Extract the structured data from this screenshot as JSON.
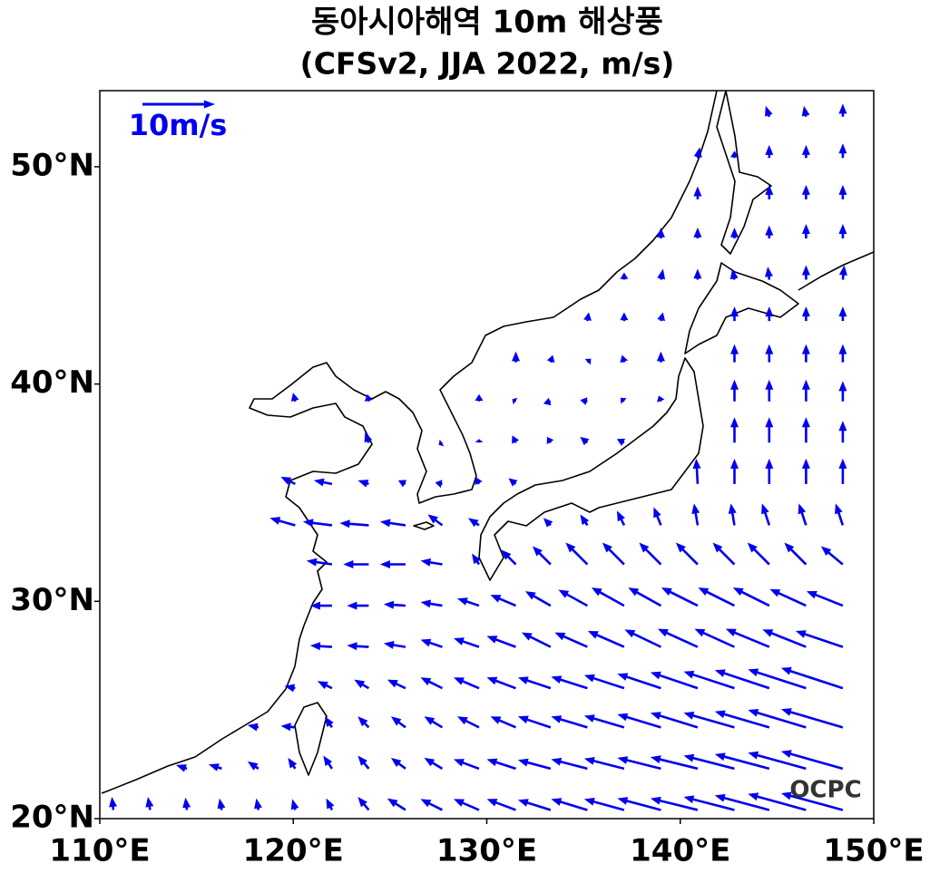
{
  "chart_data": {
    "type": "quiver",
    "title": "동아시아해역 10m 해상풍",
    "subtitle": "(CFSv2, JJA 2022, m/s)",
    "logo": "OCPC",
    "color": "#0000ee",
    "reference": {
      "value": 10,
      "label": "10m/s"
    },
    "xlim": [
      110,
      150
    ],
    "ylim": [
      20,
      53.5
    ],
    "xticks": [
      {
        "value": 110,
        "label": "110°E"
      },
      {
        "value": 120,
        "label": "120°E"
      },
      {
        "value": 130,
        "label": "130°E"
      },
      {
        "value": 140,
        "label": "140°E"
      },
      {
        "value": 150,
        "label": "150°E"
      }
    ],
    "yticks": [
      {
        "value": 20,
        "label": "20°N"
      },
      {
        "value": 30,
        "label": "30°N"
      },
      {
        "value": 40,
        "label": "40°N"
      },
      {
        "value": 50,
        "label": "50°N"
      }
    ],
    "lons": [
      110.7,
      112.6,
      114.5,
      116.3,
      118.2,
      120.1,
      122.0,
      123.9,
      125.8,
      127.7,
      129.6,
      131.5,
      133.3,
      135.2,
      137.1,
      139.0,
      140.9,
      142.8,
      144.6,
      146.5,
      148.4
    ],
    "lats": [
      20.4,
      22.3,
      24.2,
      26.0,
      27.9,
      29.8,
      31.7,
      33.5,
      35.4,
      37.3,
      39.2,
      41.0,
      42.9,
      44.8,
      46.7,
      48.5,
      50.4,
      52.3
    ],
    "u": [
      [
        -0.2,
        -0.3,
        -0.2,
        -0.3,
        -0.3,
        -0.4,
        -0.8,
        -1.5,
        -2.5,
        -3,
        -3.5,
        -4,
        -4.5,
        -5,
        -5.5,
        -6,
        -6.5,
        -7,
        -7.5,
        -8,
        -8.5
      ],
      [
        null,
        null,
        -1.5,
        -1.8,
        -1.5,
        -1,
        -1.2,
        -1.5,
        -2,
        -2.5,
        -3.5,
        -4,
        -4.5,
        -5,
        -5.5,
        -6,
        -6.5,
        -7,
        -7.5,
        -8,
        -8.5
      ],
      [
        null,
        null,
        null,
        null,
        -1.5,
        -2,
        -1,
        -1.5,
        -2,
        -2.5,
        -3,
        -3.5,
        -4.5,
        -5,
        -5.5,
        -6,
        -6.5,
        -7,
        -7.5,
        -8,
        -8.5
      ],
      [
        null,
        null,
        null,
        null,
        null,
        -1.5,
        -2,
        -2,
        -2.5,
        -3,
        -3.5,
        -4,
        -4.5,
        -5,
        -5.5,
        -6,
        -6.5,
        -7,
        -7.5,
        -8,
        -8.5
      ],
      [
        null,
        null,
        null,
        null,
        null,
        null,
        -3,
        -3,
        -3,
        -3,
        -3.5,
        -4,
        -4,
        -4.5,
        -5,
        -5,
        -5.5,
        -5.5,
        -6,
        -6,
        -6.5
      ],
      [
        null,
        null,
        null,
        null,
        null,
        null,
        -3,
        -3,
        -3,
        -3,
        -3,
        -3.5,
        -3.5,
        -4,
        -4.5,
        -4.5,
        -5,
        -5,
        -5,
        -5,
        -5
      ],
      [
        null,
        null,
        null,
        null,
        null,
        null,
        -3.5,
        -3.5,
        -3.5,
        -3,
        -1,
        -2,
        -2.5,
        -3,
        -3,
        -3,
        -3,
        -3,
        -3,
        -3,
        -3
      ],
      [
        null,
        null,
        null,
        null,
        null,
        -3.5,
        -4,
        -4,
        -3.5,
        -2,
        -1.5,
        null,
        -1,
        -1,
        -1,
        -1,
        -0.5,
        -0.5,
        -1,
        -1,
        -1
      ],
      [
        null,
        null,
        null,
        null,
        null,
        -2,
        -2.5,
        -1.5,
        -1,
        -1,
        -0.5,
        -1,
        null,
        null,
        null,
        null,
        -0.2,
        0,
        0,
        0,
        0
      ],
      [
        null,
        null,
        null,
        null,
        null,
        null,
        null,
        -0.5,
        null,
        -0.5,
        0,
        -0.5,
        -0.5,
        -1,
        -1,
        null,
        null,
        0,
        0,
        0,
        0
      ],
      [
        null,
        null,
        null,
        null,
        null,
        -0.3,
        null,
        -0.2,
        null,
        null,
        0,
        -0.5,
        -1,
        -1,
        -0.5,
        -0.3,
        null,
        0,
        0,
        0,
        0
      ],
      [
        null,
        null,
        null,
        null,
        null,
        null,
        null,
        null,
        null,
        null,
        null,
        0,
        0.3,
        0.5,
        -0.3,
        0,
        null,
        0,
        0,
        0,
        0
      ],
      [
        null,
        null,
        null,
        null,
        null,
        null,
        null,
        null,
        null,
        null,
        null,
        null,
        null,
        0.2,
        0,
        0.3,
        null,
        0,
        0,
        0,
        0
      ],
      [
        null,
        null,
        null,
        null,
        null,
        null,
        null,
        null,
        null,
        null,
        null,
        null,
        null,
        null,
        0,
        0.3,
        0,
        -0.3,
        -0.2,
        0,
        0.2
      ],
      [
        null,
        null,
        null,
        null,
        null,
        null,
        null,
        null,
        null,
        null,
        null,
        null,
        null,
        null,
        null,
        0,
        0,
        0,
        0,
        0,
        0
      ],
      [
        null,
        null,
        null,
        null,
        null,
        null,
        null,
        null,
        null,
        null,
        null,
        null,
        null,
        null,
        null,
        null,
        0,
        null,
        0,
        0,
        0
      ],
      [
        null,
        null,
        null,
        null,
        null,
        null,
        null,
        null,
        null,
        null,
        null,
        null,
        null,
        null,
        null,
        null,
        0.3,
        0,
        0,
        0,
        0
      ],
      [
        null,
        null,
        null,
        null,
        null,
        null,
        null,
        null,
        null,
        null,
        null,
        null,
        null,
        null,
        null,
        null,
        null,
        null,
        -0.5,
        -0.3,
        0
      ]
    ],
    "v": [
      [
        1.8,
        1.8,
        1.7,
        1.6,
        1.6,
        1.5,
        1.6,
        1.8,
        1.6,
        1.5,
        1.5,
        1.5,
        1.4,
        1.5,
        1.5,
        1.6,
        1.6,
        1.8,
        2,
        2.2,
        2.3
      ],
      [
        null,
        null,
        0.5,
        0.6,
        1,
        1.5,
        1.8,
        1.8,
        1.5,
        1.5,
        1.3,
        1.3,
        1.2,
        1.3,
        1.4,
        1.5,
        1.6,
        1.8,
        2,
        2.2,
        2.4
      ],
      [
        null,
        null,
        null,
        null,
        0.3,
        0.2,
        1.5,
        1.5,
        1.5,
        1.5,
        1.5,
        1.5,
        1.5,
        1.5,
        1.6,
        1.8,
        2,
        2,
        2.2,
        2.4,
        2.5
      ],
      [
        null,
        null,
        null,
        null,
        null,
        0.3,
        1,
        1.2,
        1.2,
        1.5,
        1.5,
        1.5,
        1.5,
        1.6,
        1.8,
        2,
        2.2,
        2.3,
        2.5,
        2.6,
        2.8
      ],
      [
        null,
        null,
        null,
        null,
        null,
        null,
        0.2,
        0.2,
        0.5,
        1,
        1.2,
        1.5,
        2,
        2,
        2.2,
        2.4,
        2.5,
        2.5,
        2.5,
        2.4,
        2.2
      ],
      [
        null,
        null,
        null,
        null,
        null,
        null,
        0,
        0,
        0.2,
        0.5,
        1,
        1.5,
        2,
        2.2,
        2.5,
        2.5,
        2.5,
        2.5,
        2.5,
        2.3,
        2
      ],
      [
        null,
        null,
        null,
        null,
        null,
        null,
        0.5,
        0,
        0,
        0.5,
        1.5,
        2,
        2.5,
        3,
        3,
        3,
        3,
        3,
        3,
        3,
        2.5
      ],
      [
        null,
        null,
        null,
        null,
        null,
        1,
        0.5,
        0.3,
        0.5,
        1.5,
        1,
        null,
        1,
        1.5,
        2,
        2.5,
        3,
        3,
        3,
        3,
        3
      ],
      [
        null,
        null,
        null,
        null,
        null,
        1,
        0.5,
        0.5,
        0.5,
        0.2,
        1,
        0.8,
        null,
        null,
        null,
        null,
        3.5,
        3.5,
        3.5,
        3.5,
        3.5
      ],
      [
        null,
        null,
        null,
        null,
        null,
        null,
        null,
        1.5,
        null,
        -0.3,
        0.5,
        1,
        0.8,
        0.8,
        0.5,
        null,
        null,
        3.5,
        3.5,
        3.5,
        3
      ],
      [
        null,
        null,
        null,
        null,
        null,
        1.2,
        null,
        1,
        null,
        null,
        1,
        0.3,
        -0.3,
        0.2,
        0.5,
        0.8,
        null,
        3,
        3,
        3,
        2.8
      ],
      [
        null,
        null,
        null,
        null,
        null,
        null,
        null,
        null,
        null,
        null,
        null,
        1.5,
        1,
        0.5,
        1,
        1.5,
        null,
        2.5,
        2.5,
        2.5,
        2.5
      ],
      [
        null,
        null,
        null,
        null,
        null,
        null,
        null,
        null,
        null,
        null,
        null,
        null,
        null,
        1.2,
        1.2,
        1.2,
        null,
        2,
        2,
        2,
        2
      ],
      [
        null,
        null,
        null,
        null,
        null,
        null,
        null,
        null,
        null,
        null,
        null,
        null,
        null,
        null,
        1,
        1.5,
        1.5,
        1.5,
        1.8,
        2,
        2
      ],
      [
        null,
        null,
        null,
        null,
        null,
        null,
        null,
        null,
        null,
        null,
        null,
        null,
        null,
        null,
        null,
        1.5,
        1.5,
        1.5,
        1.8,
        2,
        2
      ],
      [
        null,
        null,
        null,
        null,
        null,
        null,
        null,
        null,
        null,
        null,
        null,
        null,
        null,
        null,
        null,
        null,
        1.8,
        null,
        2,
        2,
        2
      ],
      [
        null,
        null,
        null,
        null,
        null,
        null,
        null,
        null,
        null,
        null,
        null,
        null,
        null,
        null,
        null,
        null,
        1.5,
        1,
        1.8,
        1.8,
        2
      ],
      [
        null,
        null,
        null,
        null,
        null,
        null,
        null,
        null,
        null,
        null,
        null,
        null,
        null,
        null,
        null,
        null,
        null,
        null,
        1.5,
        1.5,
        1.8
      ]
    ]
  }
}
